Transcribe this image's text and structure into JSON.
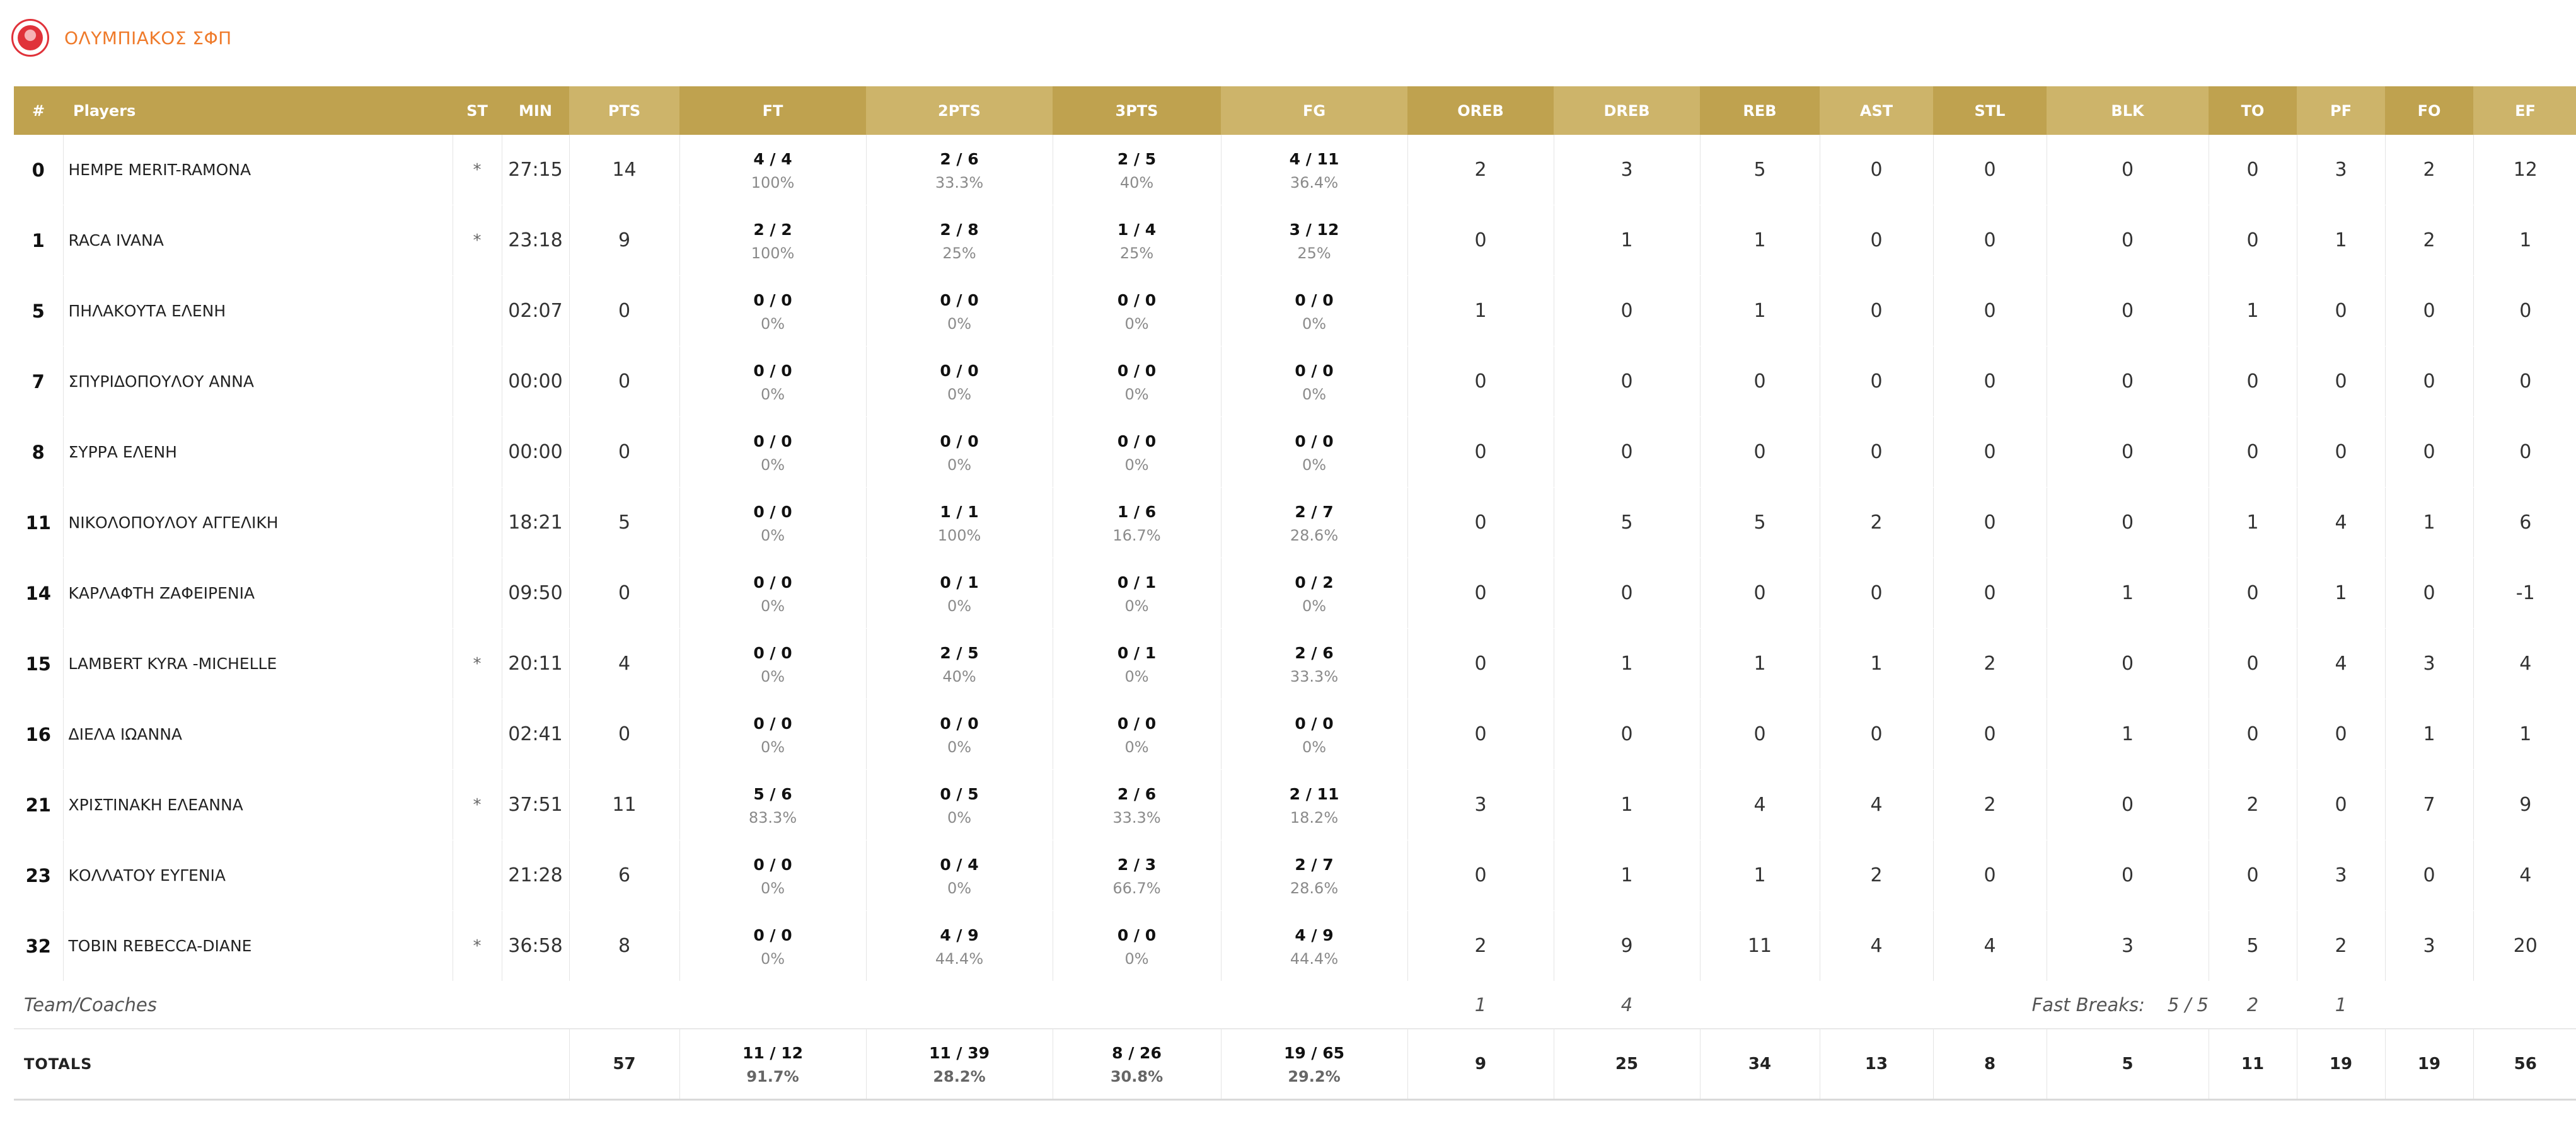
{
  "team": {
    "name": "ΟΛΥΜΠΙΑΚΟΣ ΣΦΠ",
    "logo_icon": "club-crest-icon"
  },
  "columns": [
    "#",
    "Players",
    "ST",
    "MIN",
    "PTS",
    "FT",
    "2PTS",
    "3PTS",
    "FG",
    "OREB",
    "DREB",
    "REB",
    "AST",
    "STL",
    "BLK",
    "TO",
    "PF",
    "FO",
    "EF"
  ],
  "players": [
    {
      "num": "0",
      "name": "HEMPE MERIT-RAMONA",
      "st": "*",
      "min": "27:15",
      "pts": "14",
      "ft": "4 / 4",
      "ft_pct": "100%",
      "p2": "2 / 6",
      "p2_pct": "33.3%",
      "p3": "2 / 5",
      "p3_pct": "40%",
      "fg": "4 / 11",
      "fg_pct": "36.4%",
      "oreb": "2",
      "dreb": "3",
      "reb": "5",
      "ast": "0",
      "stl": "0",
      "blk": "0",
      "to": "0",
      "pf": "3",
      "fo": "2",
      "ef": "12"
    },
    {
      "num": "1",
      "name": "RACA IVANA",
      "st": "*",
      "min": "23:18",
      "pts": "9",
      "ft": "2 / 2",
      "ft_pct": "100%",
      "p2": "2 / 8",
      "p2_pct": "25%",
      "p3": "1 / 4",
      "p3_pct": "25%",
      "fg": "3 / 12",
      "fg_pct": "25%",
      "oreb": "0",
      "dreb": "1",
      "reb": "1",
      "ast": "0",
      "stl": "0",
      "blk": "0",
      "to": "0",
      "pf": "1",
      "fo": "2",
      "ef": "1"
    },
    {
      "num": "5",
      "name": "ΠΗΛΑΚΟΥΤΑ ΕΛΕΝΗ",
      "st": "",
      "min": "02:07",
      "pts": "0",
      "ft": "0 / 0",
      "ft_pct": "0%",
      "p2": "0 / 0",
      "p2_pct": "0%",
      "p3": "0 / 0",
      "p3_pct": "0%",
      "fg": "0 / 0",
      "fg_pct": "0%",
      "oreb": "1",
      "dreb": "0",
      "reb": "1",
      "ast": "0",
      "stl": "0",
      "blk": "0",
      "to": "1",
      "pf": "0",
      "fo": "0",
      "ef": "0"
    },
    {
      "num": "7",
      "name": "ΣΠΥΡΙΔΟΠΟΥΛΟΥ ΑΝΝΑ",
      "st": "",
      "min": "00:00",
      "pts": "0",
      "ft": "0 / 0",
      "ft_pct": "0%",
      "p2": "0 / 0",
      "p2_pct": "0%",
      "p3": "0 / 0",
      "p3_pct": "0%",
      "fg": "0 / 0",
      "fg_pct": "0%",
      "oreb": "0",
      "dreb": "0",
      "reb": "0",
      "ast": "0",
      "stl": "0",
      "blk": "0",
      "to": "0",
      "pf": "0",
      "fo": "0",
      "ef": "0"
    },
    {
      "num": "8",
      "name": "ΣΥΡΡΑ ΕΛΕΝΗ",
      "st": "",
      "min": "00:00",
      "pts": "0",
      "ft": "0 / 0",
      "ft_pct": "0%",
      "p2": "0 / 0",
      "p2_pct": "0%",
      "p3": "0 / 0",
      "p3_pct": "0%",
      "fg": "0 / 0",
      "fg_pct": "0%",
      "oreb": "0",
      "dreb": "0",
      "reb": "0",
      "ast": "0",
      "stl": "0",
      "blk": "0",
      "to": "0",
      "pf": "0",
      "fo": "0",
      "ef": "0"
    },
    {
      "num": "11",
      "name": "ΝΙΚΟΛΟΠΟΥΛΟΥ ΑΓΓΕΛΙΚΗ",
      "st": "",
      "min": "18:21",
      "pts": "5",
      "ft": "0 / 0",
      "ft_pct": "0%",
      "p2": "1 / 1",
      "p2_pct": "100%",
      "p3": "1 / 6",
      "p3_pct": "16.7%",
      "fg": "2 / 7",
      "fg_pct": "28.6%",
      "oreb": "0",
      "dreb": "5",
      "reb": "5",
      "ast": "2",
      "stl": "0",
      "blk": "0",
      "to": "1",
      "pf": "4",
      "fo": "1",
      "ef": "6"
    },
    {
      "num": "14",
      "name": "ΚΑΡΛΑΦΤΗ ΖΑΦΕΙΡΕΝΙΑ",
      "st": "",
      "min": "09:50",
      "pts": "0",
      "ft": "0 / 0",
      "ft_pct": "0%",
      "p2": "0 / 1",
      "p2_pct": "0%",
      "p3": "0 / 1",
      "p3_pct": "0%",
      "fg": "0 / 2",
      "fg_pct": "0%",
      "oreb": "0",
      "dreb": "0",
      "reb": "0",
      "ast": "0",
      "stl": "0",
      "blk": "1",
      "to": "0",
      "pf": "1",
      "fo": "0",
      "ef": "-1"
    },
    {
      "num": "15",
      "name": "LAMBERT KYRA -MICHELLE",
      "st": "*",
      "min": "20:11",
      "pts": "4",
      "ft": "0 / 0",
      "ft_pct": "0%",
      "p2": "2 / 5",
      "p2_pct": "40%",
      "p3": "0 / 1",
      "p3_pct": "0%",
      "fg": "2 / 6",
      "fg_pct": "33.3%",
      "oreb": "0",
      "dreb": "1",
      "reb": "1",
      "ast": "1",
      "stl": "2",
      "blk": "0",
      "to": "0",
      "pf": "4",
      "fo": "3",
      "ef": "4"
    },
    {
      "num": "16",
      "name": "ΔΙΕΛΑ ΙΩΑΝΝΑ",
      "st": "",
      "min": "02:41",
      "pts": "0",
      "ft": "0 / 0",
      "ft_pct": "0%",
      "p2": "0 / 0",
      "p2_pct": "0%",
      "p3": "0 / 0",
      "p3_pct": "0%",
      "fg": "0 / 0",
      "fg_pct": "0%",
      "oreb": "0",
      "dreb": "0",
      "reb": "0",
      "ast": "0",
      "stl": "0",
      "blk": "1",
      "to": "0",
      "pf": "0",
      "fo": "1",
      "ef": "1"
    },
    {
      "num": "21",
      "name": "ΧΡΙΣΤΙΝΑΚΗ ΕΛΕΑΝΝΑ",
      "st": "*",
      "min": "37:51",
      "pts": "11",
      "ft": "5 / 6",
      "ft_pct": "83.3%",
      "p2": "0 / 5",
      "p2_pct": "0%",
      "p3": "2 / 6",
      "p3_pct": "33.3%",
      "fg": "2 / 11",
      "fg_pct": "18.2%",
      "oreb": "3",
      "dreb": "1",
      "reb": "4",
      "ast": "4",
      "stl": "2",
      "blk": "0",
      "to": "2",
      "pf": "0",
      "fo": "7",
      "ef": "9"
    },
    {
      "num": "23",
      "name": "ΚΟΛΛΑΤΟΥ ΕΥΓΕΝΙΑ",
      "st": "",
      "min": "21:28",
      "pts": "6",
      "ft": "0 / 0",
      "ft_pct": "0%",
      "p2": "0 / 4",
      "p2_pct": "0%",
      "p3": "2 / 3",
      "p3_pct": "66.7%",
      "fg": "2 / 7",
      "fg_pct": "28.6%",
      "oreb": "0",
      "dreb": "1",
      "reb": "1",
      "ast": "2",
      "stl": "0",
      "blk": "0",
      "to": "0",
      "pf": "3",
      "fo": "0",
      "ef": "4"
    },
    {
      "num": "32",
      "name": "TOBIN REBECCA-DIANE",
      "st": "*",
      "min": "36:58",
      "pts": "8",
      "ft": "0 / 0",
      "ft_pct": "0%",
      "p2": "4 / 9",
      "p2_pct": "44.4%",
      "p3": "0 / 0",
      "p3_pct": "0%",
      "fg": "4 / 9",
      "fg_pct": "44.4%",
      "oreb": "2",
      "dreb": "9",
      "reb": "11",
      "ast": "4",
      "stl": "4",
      "blk": "3",
      "to": "5",
      "pf": "2",
      "fo": "3",
      "ef": "20"
    }
  ],
  "team_coaches": {
    "label": "Team/Coaches",
    "oreb": "1",
    "dreb": "4",
    "fast_breaks_label": "Fast Breaks:",
    "fast_breaks_value": "5 / 5",
    "to": "2",
    "pf": "1"
  },
  "totals": {
    "label": "TOTALS",
    "pts": "57",
    "ft": "11 / 12",
    "ft_pct": "91.7%",
    "p2": "11 / 39",
    "p2_pct": "28.2%",
    "p3": "8 / 26",
    "p3_pct": "30.8%",
    "fg": "19 / 65",
    "fg_pct": "29.2%",
    "oreb": "9",
    "dreb": "25",
    "reb": "34",
    "ast": "13",
    "stl": "8",
    "blk": "5",
    "to": "11",
    "pf": "19",
    "fo": "19",
    "ef": "56"
  },
  "colors": {
    "header_dark": "#bfa24f",
    "header_light": "#cdb46a",
    "team_name": "#ef7a2a",
    "crest_red": "#e0323a"
  }
}
